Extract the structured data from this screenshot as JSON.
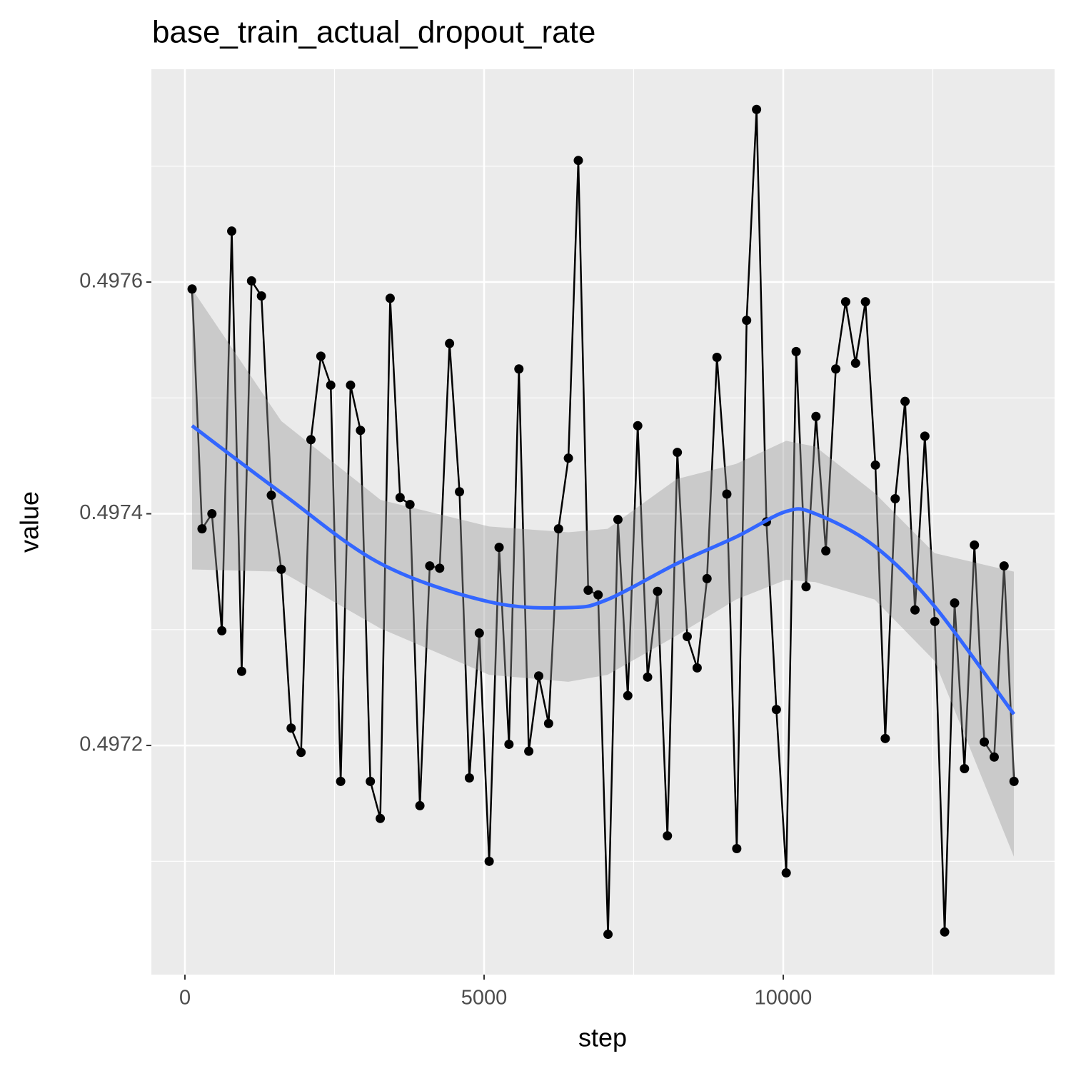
{
  "chart_data": {
    "type": "line",
    "title": "base_train_actual_dropout_rate",
    "x_label": "step",
    "y_label": "value",
    "xlim": [
      -561,
      14535
    ],
    "ylim": [
      0.4970022,
      0.4977837
    ],
    "xticks": [
      0,
      5000,
      10000
    ],
    "yticks": [
      0.4972,
      0.4974,
      0.4976
    ],
    "minor_xticks": [
      2500,
      7500,
      12500
    ],
    "minor_yticks": [
      0.4971,
      0.4973,
      0.4975,
      0.4977
    ],
    "grid": true,
    "background": "#ebebeb",
    "points": {
      "color": "#000000",
      "x": [
        120,
        286,
        451,
        617,
        782,
        948,
        1113,
        1279,
        1444,
        1610,
        1775,
        1941,
        2106,
        2272,
        2437,
        2603,
        2768,
        2934,
        3099,
        3265,
        3430,
        3596,
        3761,
        3927,
        4092,
        4258,
        4423,
        4589,
        4754,
        4920,
        5085,
        5251,
        5416,
        5582,
        5747,
        5913,
        6078,
        6244,
        6409,
        6575,
        6740,
        6906,
        7071,
        7237,
        7402,
        7568,
        7733,
        7899,
        8064,
        8230,
        8395,
        8561,
        8726,
        8892,
        9057,
        9223,
        9388,
        9554,
        9719,
        9885,
        10050,
        10216,
        10381,
        10547,
        10712,
        10878,
        11043,
        11209,
        11374,
        11540,
        11705,
        11871,
        12036,
        12202,
        12367,
        12533,
        12698,
        12864,
        13029,
        13195,
        13360,
        13526,
        13691,
        13857
      ],
      "values": [
        0.497594,
        0.497387,
        0.4974,
        0.497299,
        0.497644,
        0.497264,
        0.497601,
        0.497588,
        0.497416,
        0.497352,
        0.497215,
        0.497194,
        0.497464,
        0.497536,
        0.497511,
        0.497169,
        0.497511,
        0.497472,
        0.497169,
        0.497137,
        0.497586,
        0.497414,
        0.497408,
        0.497148,
        0.497355,
        0.497353,
        0.497547,
        0.497419,
        0.497172,
        0.497297,
        0.4971,
        0.497371,
        0.497201,
        0.497525,
        0.497195,
        0.49726,
        0.497219,
        0.497387,
        0.497448,
        0.497705,
        0.497334,
        0.49733,
        0.497037,
        0.497395,
        0.497243,
        0.497476,
        0.497259,
        0.497333,
        0.497122,
        0.497453,
        0.497294,
        0.497267,
        0.497344,
        0.497535,
        0.497417,
        0.497111,
        0.497567,
        0.497749,
        0.497393,
        0.497231,
        0.49709,
        0.49754,
        0.497337,
        0.497484,
        0.497368,
        0.497525,
        0.497583,
        0.49753,
        0.497583,
        0.497442,
        0.497206,
        0.497413,
        0.497497,
        0.497317,
        0.497467,
        0.497307,
        0.497039,
        0.497323,
        0.49718,
        0.497373,
        0.497203,
        0.49719,
        0.497355,
        0.497169
      ]
    },
    "smooth": {
      "color": "#3366ff",
      "band_color": "#999999",
      "x": [
        119,
        1611,
        3270,
        5084,
        6408,
        7064,
        8222,
        9212,
        10048,
        10537,
        11527,
        12530,
        13855
      ],
      "values": [
        0.497476,
        0.497418,
        0.497357,
        0.497324,
        0.497319,
        0.497326,
        0.497357,
        0.49738,
        0.497402,
        0.4974,
        0.497372,
        0.49732,
        0.497227
      ],
      "upper": [
        0.497594,
        0.49748,
        0.497412,
        0.497389,
        0.497384,
        0.497387,
        0.49743,
        0.497443,
        0.497463,
        0.497458,
        0.497418,
        0.497366,
        0.49735
      ],
      "lower": [
        0.497352,
        0.49735,
        0.497301,
        0.497261,
        0.497255,
        0.497261,
        0.497295,
        0.497326,
        0.497343,
        0.497341,
        0.497326,
        0.497273,
        0.497104
      ]
    }
  }
}
